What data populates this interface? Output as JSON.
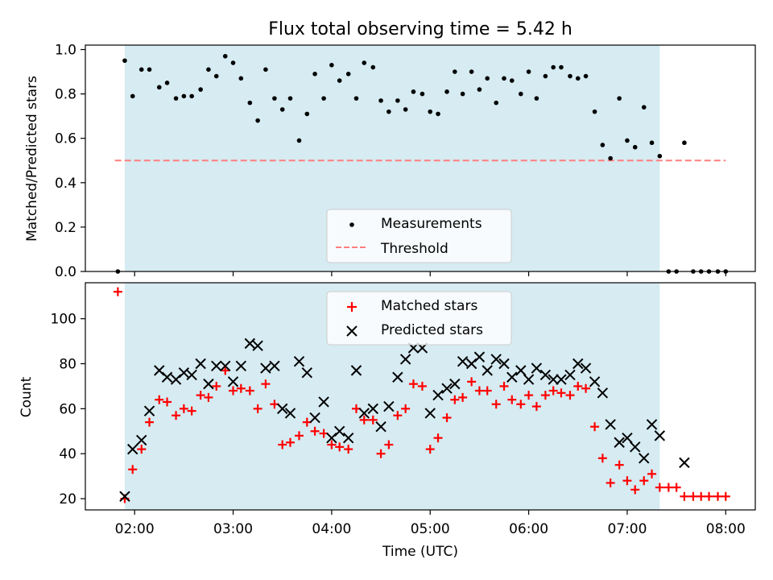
{
  "title": "Flux total observing time = 5.42 h",
  "chart_data": [
    {
      "type": "scatter",
      "ylabel": "Matched/Predicted stars",
      "ylim": [
        0,
        1.02
      ],
      "yticks": [
        0.0,
        0.2,
        0.4,
        0.6,
        0.8,
        1.0
      ],
      "ytick_labels": [
        "0.0",
        "0.2",
        "0.4",
        "0.6",
        "0.8",
        "1.0"
      ],
      "shaded_region": {
        "x0": 1.9,
        "x1": 7.33,
        "color": "#add8e6"
      },
      "threshold": {
        "name": "Threshold",
        "value": 0.5,
        "x0": 1.8,
        "x1": 8.0,
        "color": "#ff7f7f"
      },
      "legend": {
        "position": "lower center",
        "entries": [
          "Measurements",
          "Threshold"
        ]
      },
      "series": [
        {
          "name": "Measurements",
          "marker": "dot",
          "color": "#000000",
          "x": [
            1.83,
            1.9,
            1.98,
            2.07,
            2.15,
            2.25,
            2.33,
            2.42,
            2.5,
            2.58,
            2.67,
            2.75,
            2.83,
            2.92,
            3.0,
            3.08,
            3.17,
            3.25,
            3.33,
            3.42,
            3.5,
            3.58,
            3.67,
            3.75,
            3.83,
            3.92,
            4.0,
            4.08,
            4.17,
            4.25,
            4.33,
            4.42,
            4.5,
            4.58,
            4.67,
            4.75,
            4.83,
            4.92,
            5.0,
            5.08,
            5.17,
            5.25,
            5.33,
            5.42,
            5.5,
            5.58,
            5.67,
            5.75,
            5.83,
            5.92,
            6.0,
            6.08,
            6.17,
            6.25,
            6.33,
            6.42,
            6.5,
            6.58,
            6.67,
            6.75,
            6.83,
            6.92,
            7.0,
            7.08,
            7.17,
            7.25,
            7.33,
            7.42,
            7.5,
            7.58,
            7.67,
            7.75,
            7.83,
            7.92,
            8.0
          ],
          "y": [
            0.0,
            0.95,
            0.79,
            0.91,
            0.91,
            0.83,
            0.85,
            0.78,
            0.79,
            0.79,
            0.82,
            0.91,
            0.88,
            0.97,
            0.94,
            0.87,
            0.76,
            0.68,
            0.91,
            0.78,
            0.73,
            0.78,
            0.59,
            0.71,
            0.89,
            0.78,
            0.93,
            0.86,
            0.89,
            0.78,
            0.94,
            0.92,
            0.77,
            0.72,
            0.77,
            0.73,
            0.81,
            0.8,
            0.72,
            0.71,
            0.81,
            0.9,
            0.8,
            0.9,
            0.82,
            0.87,
            0.76,
            0.87,
            0.86,
            0.8,
            0.9,
            0.78,
            0.88,
            0.92,
            0.92,
            0.88,
            0.87,
            0.88,
            0.72,
            0.57,
            0.51,
            0.78,
            0.59,
            0.56,
            0.74,
            0.58,
            0.52,
            0.0,
            0.0,
            0.58,
            0.0,
            0.0,
            0.0,
            0.0,
            0.0
          ]
        }
      ]
    },
    {
      "type": "scatter",
      "xlabel": "Time (UTC)",
      "ylabel": "Count",
      "xlim": [
        1.5,
        8.3
      ],
      "ylim": [
        15,
        116
      ],
      "xticks": [
        2,
        3,
        4,
        5,
        6,
        7,
        8
      ],
      "xtick_labels": [
        "02:00",
        "03:00",
        "04:00",
        "05:00",
        "06:00",
        "07:00",
        "08:00"
      ],
      "yticks": [
        20,
        40,
        60,
        80,
        100
      ],
      "ytick_labels": [
        "20",
        "40",
        "60",
        "80",
        "100"
      ],
      "shaded_region": {
        "x0": 1.9,
        "x1": 7.33,
        "color": "#add8e6"
      },
      "legend": {
        "position": "upper center",
        "entries": [
          "Matched stars",
          "Predicted stars"
        ]
      },
      "series": [
        {
          "name": "Matched stars",
          "marker": "plus",
          "color": "#ff0000",
          "x": [
            1.83,
            1.9,
            1.98,
            2.07,
            2.15,
            2.25,
            2.33,
            2.42,
            2.5,
            2.58,
            2.67,
            2.75,
            2.83,
            2.92,
            3.0,
            3.08,
            3.17,
            3.25,
            3.33,
            3.42,
            3.5,
            3.58,
            3.67,
            3.75,
            3.83,
            3.92,
            4.0,
            4.08,
            4.17,
            4.25,
            4.33,
            4.42,
            4.5,
            4.58,
            4.67,
            4.75,
            4.83,
            4.92,
            5.0,
            5.08,
            5.17,
            5.25,
            5.33,
            5.42,
            5.5,
            5.58,
            5.67,
            5.75,
            5.83,
            5.92,
            6.0,
            6.08,
            6.17,
            6.25,
            6.33,
            6.42,
            6.5,
            6.58,
            6.67,
            6.75,
            6.83,
            6.92,
            7.0,
            7.08,
            7.17,
            7.25,
            7.33,
            7.42,
            7.5,
            7.58,
            7.67,
            7.75,
            7.83,
            7.92,
            8.0
          ],
          "y": [
            112,
            20,
            33,
            42,
            54,
            64,
            63,
            57,
            60,
            59,
            66,
            65,
            70,
            77,
            68,
            69,
            68,
            60,
            71,
            62,
            44,
            45,
            48,
            54,
            50,
            49,
            44,
            43,
            42,
            60,
            55,
            55,
            40,
            44,
            57,
            60,
            71,
            70,
            42,
            47,
            56,
            64,
            65,
            72,
            68,
            68,
            62,
            70,
            64,
            62,
            66,
            61,
            66,
            68,
            67,
            66,
            70,
            69,
            52,
            38,
            27,
            35,
            28,
            24,
            28,
            31,
            25,
            25,
            25,
            21,
            21,
            21,
            21,
            21,
            21
          ]
        },
        {
          "name": "Predicted stars",
          "marker": "x",
          "color": "#000000",
          "x": [
            1.9,
            1.98,
            2.07,
            2.15,
            2.25,
            2.33,
            2.42,
            2.5,
            2.58,
            2.67,
            2.75,
            2.83,
            2.92,
            3.0,
            3.08,
            3.17,
            3.25,
            3.33,
            3.42,
            3.5,
            3.58,
            3.67,
            3.75,
            3.83,
            3.92,
            4.0,
            4.08,
            4.17,
            4.25,
            4.33,
            4.42,
            4.5,
            4.58,
            4.67,
            4.75,
            4.83,
            4.92,
            5.0,
            5.08,
            5.17,
            5.25,
            5.33,
            5.42,
            5.5,
            5.58,
            5.67,
            5.75,
            5.83,
            5.92,
            6.0,
            6.08,
            6.17,
            6.25,
            6.33,
            6.42,
            6.5,
            6.58,
            6.67,
            6.75,
            6.83,
            6.92,
            7.0,
            7.08,
            7.17,
            7.25,
            7.33,
            7.58
          ],
          "y": [
            21,
            42,
            46,
            59,
            77,
            74,
            73,
            76,
            75,
            80,
            71,
            79,
            79,
            72,
            79,
            89,
            88,
            78,
            79,
            60,
            58,
            81,
            76,
            56,
            63,
            47,
            50,
            47,
            77,
            58,
            60,
            52,
            61,
            74,
            82,
            87,
            87,
            58,
            66,
            69,
            71,
            81,
            80,
            83,
            77,
            82,
            80,
            74,
            77,
            73,
            78,
            75,
            73,
            73,
            75,
            80,
            78,
            72,
            67,
            53,
            45,
            47,
            43,
            38,
            53,
            48,
            36
          ]
        }
      ]
    }
  ]
}
